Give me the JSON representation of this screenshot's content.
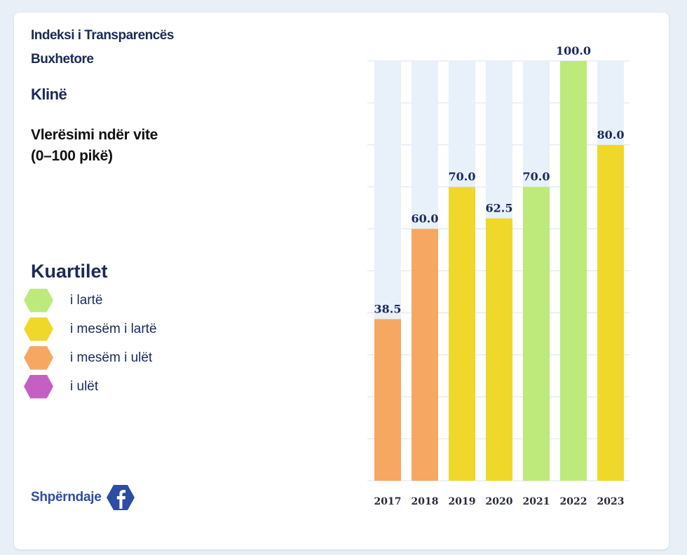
{
  "header": {
    "index_title": "Indeksi i Transparencës Buxhetore",
    "municipality": "Klinë",
    "subtitle_line1": "Vlerësimi ndër vite",
    "subtitle_line2": "(0–100 pikë)"
  },
  "legend": {
    "title": "Kuartilet",
    "items": [
      {
        "label": "i lartë",
        "color": "#bdea7a"
      },
      {
        "label": "i mesëm i lartë",
        "color": "#f0d82a"
      },
      {
        "label": "i mesëm i ulët",
        "color": "#f6a863"
      },
      {
        "label": "i ulët",
        "color": "#c65fc3"
      }
    ]
  },
  "share": {
    "label": "Shpërndaje",
    "icon": "facebook-icon"
  },
  "colors": {
    "track": "#e8f0f9",
    "grid": "#d9e3ef",
    "label": "#1b2a5a"
  },
  "chart_data": {
    "type": "bar",
    "title": "Vlerësimi ndër vite (0–100 pikë)",
    "categories": [
      "2017",
      "2018",
      "2019",
      "2020",
      "2021",
      "2022",
      "2023"
    ],
    "values": [
      38.5,
      60.0,
      70.0,
      62.5,
      70.0,
      100.0,
      80.0
    ],
    "value_labels": [
      "38.5",
      "60.0",
      "70.0",
      "62.5",
      "70.0",
      "100.0",
      "80.0"
    ],
    "quartile": [
      "i mesëm i ulët",
      "i mesëm i ulët",
      "i mesëm i lartë",
      "i mesëm i lartë",
      "i lartë",
      "i lartë",
      "i mesëm i lartë"
    ],
    "ylim": [
      0,
      100
    ],
    "grid": true,
    "xlabel": "",
    "ylabel": ""
  }
}
